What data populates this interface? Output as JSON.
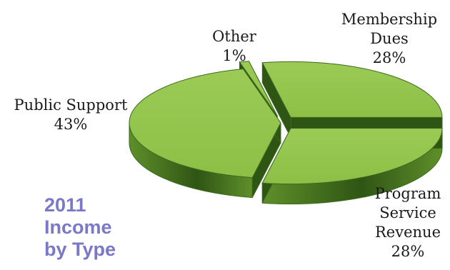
{
  "chart_data": {
    "type": "pie",
    "title": [
      "2011",
      "Income",
      "by Type"
    ],
    "slices": [
      {
        "label": [
          "Membership",
          "Dues"
        ],
        "value": 28,
        "value_label": "28%",
        "exploded": true
      },
      {
        "label": [
          "Program",
          "Service",
          "Revenue"
        ],
        "value": 28,
        "value_label": "28%",
        "exploded": true
      },
      {
        "label": [
          "Public Support"
        ],
        "value": 43,
        "value_label": "43%",
        "exploded": false
      },
      {
        "label": [
          "Other"
        ],
        "value": 1,
        "value_label": "1%",
        "exploded": true
      }
    ],
    "colors": {
      "top": "#8dbf47",
      "side_light": "#5f8f2a",
      "side_dark": "#2f5514",
      "edge": "#3b6a1e",
      "title": "#7b78c9"
    }
  }
}
